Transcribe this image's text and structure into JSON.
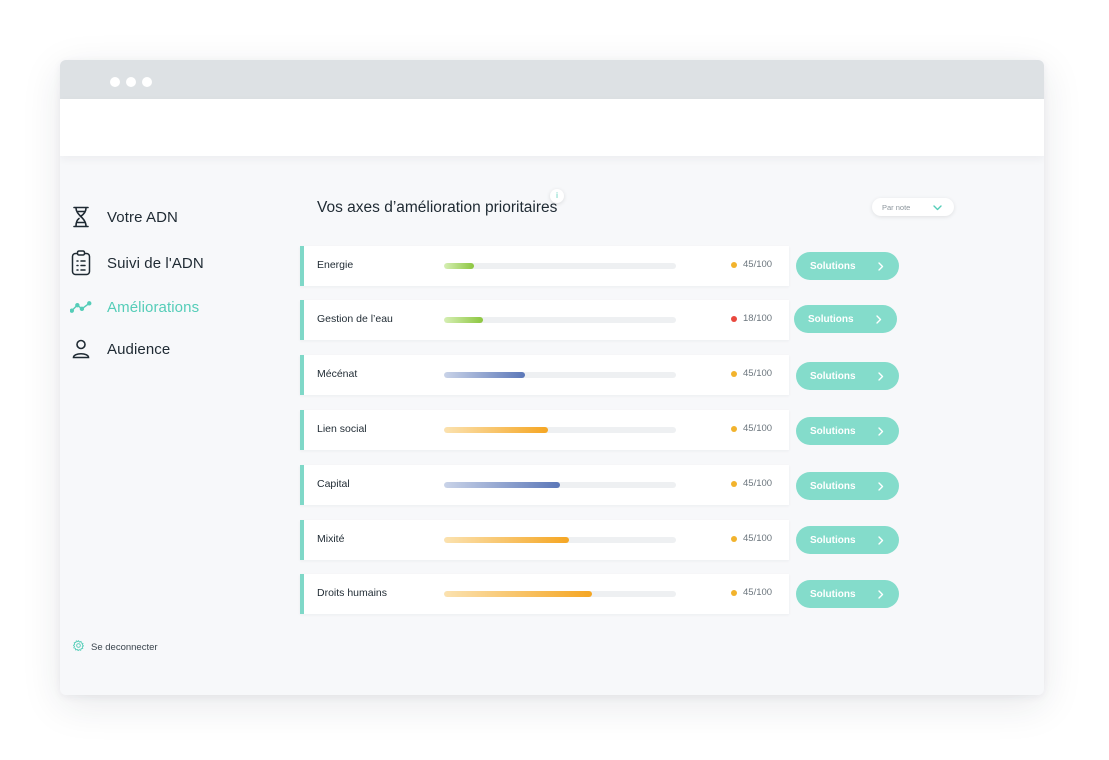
{
  "nav": {
    "items": [
      {
        "label": "Votre ADN",
        "icon": "dna-icon"
      },
      {
        "label": "Suivi de l'ADN",
        "icon": "clipboard-icon"
      },
      {
        "label": "Améliorations",
        "icon": "trend-line-icon",
        "active": true
      },
      {
        "label": "Audience",
        "icon": "user-icon"
      }
    ],
    "logout": {
      "label": "Se deconnecter",
      "icon": "gear-icon"
    }
  },
  "main": {
    "title": "Vos axes d’amélioration prioritaires",
    "info_label": "i",
    "sort": {
      "selected": "Par note"
    },
    "solutions_label": "Solutions",
    "rows": [
      {
        "name": "Energie",
        "score": "45/100",
        "progress": 0.13,
        "bar": "green",
        "status_color": "#f2b32d"
      },
      {
        "name": "Gestion de l’eau",
        "score": "18/100",
        "progress": 0.17,
        "bar": "green",
        "status_color": "#e9483e"
      },
      {
        "name": "Mécénat",
        "score": "45/100",
        "progress": 0.35,
        "bar": "blue",
        "status_color": "#f2b32d"
      },
      {
        "name": "Lien social",
        "score": "45/100",
        "progress": 0.45,
        "bar": "orange",
        "status_color": "#f2b32d"
      },
      {
        "name": "Capital",
        "score": "45/100",
        "progress": 0.5,
        "bar": "blue",
        "status_color": "#f2b32d"
      },
      {
        "name": "Mixité",
        "score": "45/100",
        "progress": 0.54,
        "bar": "orange",
        "status_color": "#f2b32d"
      },
      {
        "name": "Droits humains",
        "score": "45/100",
        "progress": 0.64,
        "bar": "orange",
        "status_color": "#f2b32d"
      }
    ]
  },
  "colors": {
    "accent": "#55cdb8",
    "button": "#84dccb",
    "row_border": "#7fd8c8",
    "bar_green_start": "#d6efb4",
    "bar_green_end": "#8cc63f",
    "bar_blue_start": "#c9d3e8",
    "bar_blue_end": "#5b77b8",
    "bar_orange_start": "#fbe2b0",
    "bar_orange_end": "#f5a623"
  }
}
